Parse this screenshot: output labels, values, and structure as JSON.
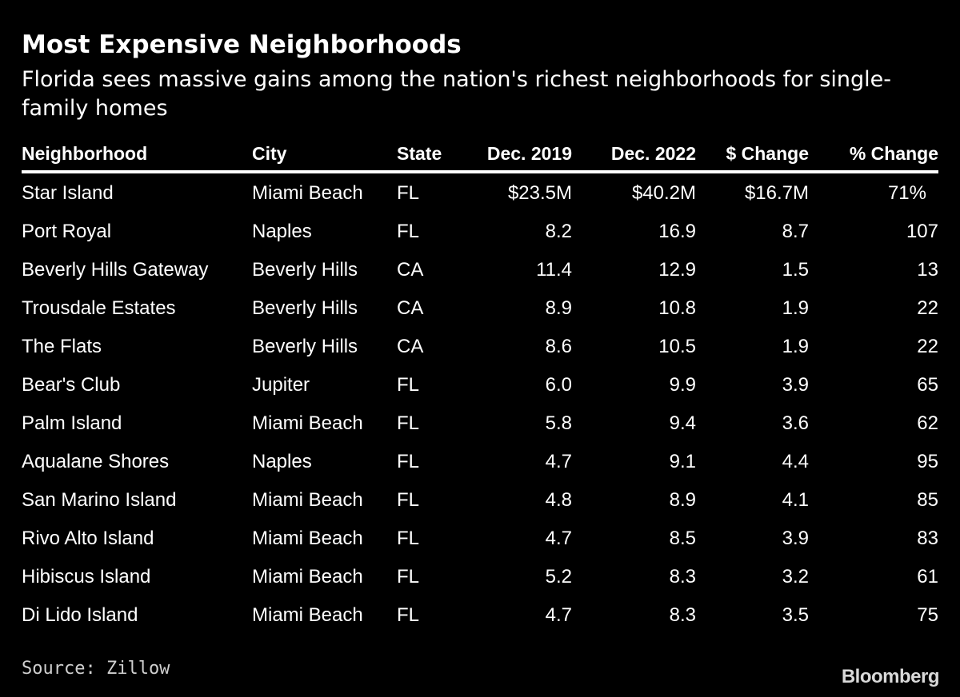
{
  "title": "Most Expensive Neighborhoods",
  "subtitle": "Florida sees massive gains among the nation's richest neighborhoods for single-family homes",
  "source": "Source: Zillow",
  "logo_text": "Bloomberg",
  "colors": {
    "background": "#000000",
    "text": "#ffffff",
    "rule": "#ffffff"
  },
  "chart_data": {
    "type": "table",
    "title": "Most Expensive Neighborhoods",
    "subtitle": "Florida sees massive gains among the nation's richest neighborhoods for single-family homes",
    "columns": [
      "Neighborhood",
      "City",
      "State",
      "Dec. 2019",
      "Dec. 2022",
      "$ Change",
      "% Change"
    ],
    "rows": [
      [
        "Star Island",
        "Miami Beach",
        "FL",
        "$23.5M",
        "$40.2M",
        "$16.7M",
        "71%"
      ],
      [
        "Port Royal",
        "Naples",
        "FL",
        "8.2",
        "16.9",
        "8.7",
        "107"
      ],
      [
        "Beverly Hills Gateway",
        "Beverly Hills",
        "CA",
        "11.4",
        "12.9",
        "1.5",
        "13"
      ],
      [
        "Trousdale Estates",
        "Beverly Hills",
        "CA",
        "8.9",
        "10.8",
        "1.9",
        "22"
      ],
      [
        "The Flats",
        "Beverly Hills",
        "CA",
        "8.6",
        "10.5",
        "1.9",
        "22"
      ],
      [
        "Bear's Club",
        "Jupiter",
        "FL",
        "6.0",
        "9.9",
        "3.9",
        "65"
      ],
      [
        "Palm Island",
        "Miami Beach",
        "FL",
        "5.8",
        "9.4",
        "3.6",
        "62"
      ],
      [
        "Aqualane Shores",
        "Naples",
        "FL",
        "4.7",
        "9.1",
        "4.4",
        "95"
      ],
      [
        "San Marino Island",
        "Miami Beach",
        "FL",
        "4.8",
        "8.9",
        "4.1",
        "85"
      ],
      [
        "Rivo Alto Island",
        "Miami Beach",
        "FL",
        "4.7",
        "8.5",
        "3.9",
        "83"
      ],
      [
        "Hibiscus Island",
        "Miami Beach",
        "FL",
        "5.2",
        "8.3",
        "3.2",
        "61"
      ],
      [
        "Di Lido Island",
        "Miami Beach",
        "FL",
        "4.7",
        "8.3",
        "3.5",
        "75"
      ]
    ]
  }
}
